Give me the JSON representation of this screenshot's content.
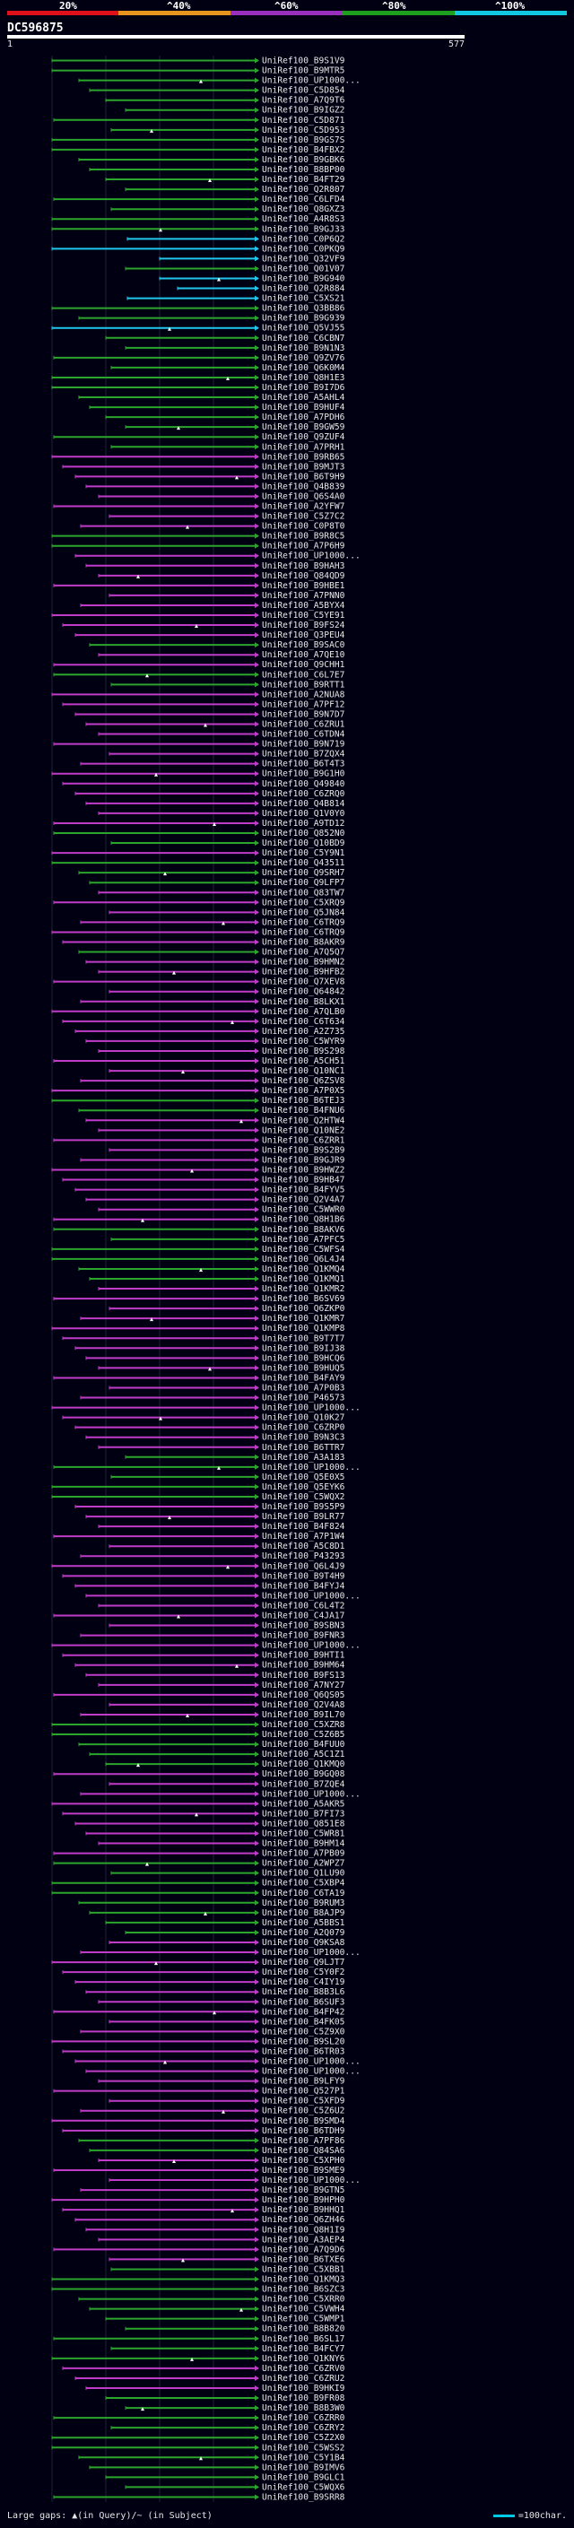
{
  "legend": {
    "segments": [
      {
        "label": "20%",
        "color": "#e0101a"
      },
      {
        "label": "^40%",
        "color": "#e6961e"
      },
      {
        "label": "^60%",
        "color": "#9a2fbe"
      },
      {
        "label": "^80%",
        "color": "#1ea01e"
      },
      {
        "label": "^100%",
        "color": "#12c8e0"
      }
    ]
  },
  "query": {
    "id": "DC596875",
    "start": "1",
    "end": "577"
  },
  "colors": {
    "green": "#2ca52c",
    "magenta": "#c03cc8",
    "cyan": "#21c6ec",
    "background": "#000012",
    "grid": "#1f2236"
  },
  "footer": {
    "gaps_text": "Large gaps: ▲(in Query)/~ (in Subject)",
    "scale_text": "=100char."
  },
  "hits": [
    {
      "id": "UniRef100_B9S1V9",
      "color": "green"
    },
    {
      "id": "UniRef100_B9MTR5",
      "color": "green"
    },
    {
      "id": "UniRef100_UP1000...",
      "color": "green"
    },
    {
      "id": "UniRef100_C5D854",
      "color": "green"
    },
    {
      "id": "UniRef100_A7Q9T6",
      "color": "green"
    },
    {
      "id": "UniRef100_B9IGZ2",
      "color": "green"
    },
    {
      "id": "UniRef100_C5D871",
      "color": "green"
    },
    {
      "id": "UniRef100_C5D953",
      "color": "green"
    },
    {
      "id": "UniRef100_B9GS7S",
      "color": "green"
    },
    {
      "id": "UniRef100_B4FBX2",
      "color": "green"
    },
    {
      "id": "UniRef100_B9GBK6",
      "color": "green"
    },
    {
      "id": "UniRef100_B8BP00",
      "color": "green"
    },
    {
      "id": "UniRef100_B4FT29",
      "color": "green"
    },
    {
      "id": "UniRef100_Q2R807",
      "color": "green"
    },
    {
      "id": "UniRef100_C6LFD4",
      "color": "green"
    },
    {
      "id": "UniRef100_Q8GXZ3",
      "color": "green"
    },
    {
      "id": "UniRef100_A4R8S3",
      "color": "green"
    },
    {
      "id": "UniRef100_B9GJ33",
      "color": "green"
    },
    {
      "id": "UniRef100_C0P6Q2",
      "color": "cyan"
    },
    {
      "id": "UniRef100_C0PKQ9",
      "color": "cyan"
    },
    {
      "id": "UniRef100_Q32VF9",
      "color": "cyan"
    },
    {
      "id": "UniRef100_Q01V07",
      "color": "green"
    },
    {
      "id": "UniRef100_B9G940",
      "color": "cyan"
    },
    {
      "id": "UniRef100_Q2R884",
      "color": "cyan"
    },
    {
      "id": "UniRef100_C5XS21",
      "color": "cyan"
    },
    {
      "id": "UniRef100_Q3BB86",
      "color": "green"
    },
    {
      "id": "UniRef100_B9G939",
      "color": "green"
    },
    {
      "id": "UniRef100_Q5VJ55",
      "color": "cyan"
    },
    {
      "id": "UniRef100_C6CBN7",
      "color": "green"
    },
    {
      "id": "UniRef100_B9N1N3",
      "color": "green"
    },
    {
      "id": "UniRef100_Q9ZV76",
      "color": "green"
    },
    {
      "id": "UniRef100_Q6K0M4",
      "color": "green"
    },
    {
      "id": "UniRef100_Q8H1E3",
      "color": "green"
    },
    {
      "id": "UniRef100_B9I7D6",
      "color": "green"
    },
    {
      "id": "UniRef100_A5AHL4",
      "color": "green"
    },
    {
      "id": "UniRef100_B9HUF4",
      "color": "green"
    },
    {
      "id": "UniRef100_A7PDH6",
      "color": "green"
    },
    {
      "id": "UniRef100_B9GW59",
      "color": "green"
    },
    {
      "id": "UniRef100_Q9ZUF4",
      "color": "green"
    },
    {
      "id": "UniRef100_A7PRH1",
      "color": "green"
    },
    {
      "id": "UniRef100_B9RB65",
      "color": "magenta"
    },
    {
      "id": "UniRef100_B9MJT3",
      "color": "magenta"
    },
    {
      "id": "UniRef100_B6T9H9",
      "color": "magenta"
    },
    {
      "id": "UniRef100_Q4B839",
      "color": "magenta"
    },
    {
      "id": "UniRef100_Q6S4A0",
      "color": "magenta"
    },
    {
      "id": "UniRef100_A2YFW7",
      "color": "magenta"
    },
    {
      "id": "UniRef100_C5Z7C2",
      "color": "magenta"
    },
    {
      "id": "UniRef100_C0P8T0",
      "color": "magenta"
    },
    {
      "id": "UniRef100_B9R8C5",
      "color": "green"
    },
    {
      "id": "UniRef100_A7P6H9",
      "color": "green"
    },
    {
      "id": "UniRef100_UP1000...",
      "color": "magenta"
    },
    {
      "id": "UniRef100_B9HAH3",
      "color": "magenta"
    },
    {
      "id": "UniRef100_Q84QD9",
      "color": "magenta"
    },
    {
      "id": "UniRef100_B9HBE1",
      "color": "magenta"
    },
    {
      "id": "UniRef100_A7PNN0",
      "color": "magenta"
    },
    {
      "id": "UniRef100_A5BYX4",
      "color": "magenta"
    },
    {
      "id": "UniRef100_C5YE91",
      "color": "magenta"
    },
    {
      "id": "UniRef100_B9FS24",
      "color": "magenta"
    },
    {
      "id": "UniRef100_Q3PEU4",
      "color": "magenta"
    },
    {
      "id": "UniRef100_B9SAC0",
      "color": "green"
    },
    {
      "id": "UniRef100_A7QE10",
      "color": "magenta"
    },
    {
      "id": "UniRef100_Q9CHH1",
      "color": "magenta"
    },
    {
      "id": "UniRef100_C6L7E7",
      "color": "green"
    },
    {
      "id": "UniRef100_B9RTT1",
      "color": "green"
    },
    {
      "id": "UniRef100_A2NUA8",
      "color": "magenta"
    },
    {
      "id": "UniRef100_A7PF12",
      "color": "magenta"
    },
    {
      "id": "UniRef100_B9N7D7",
      "color": "magenta"
    },
    {
      "id": "UniRef100_C6ZRU1",
      "color": "magenta"
    },
    {
      "id": "UniRef100_C6TDN4",
      "color": "magenta"
    },
    {
      "id": "UniRef100_B9N719",
      "color": "magenta"
    },
    {
      "id": "UniRef100_B7ZQX4",
      "color": "magenta"
    },
    {
      "id": "UniRef100_B6T4T3",
      "color": "magenta"
    },
    {
      "id": "UniRef100_B9G1H0",
      "color": "magenta"
    },
    {
      "id": "UniRef100_Q49840",
      "color": "magenta"
    },
    {
      "id": "UniRef100_C6ZRQ0",
      "color": "magenta"
    },
    {
      "id": "UniRef100_Q4B814",
      "color": "magenta"
    },
    {
      "id": "UniRef100_Q1V0Y0",
      "color": "magenta"
    },
    {
      "id": "UniRef100_A9TD12",
      "color": "magenta"
    },
    {
      "id": "UniRef100_Q852N0",
      "color": "green"
    },
    {
      "id": "UniRef100_Q10BD9",
      "color": "green"
    },
    {
      "id": "UniRef100_C5Y9N1",
      "color": "magenta"
    },
    {
      "id": "UniRef100_Q43511",
      "color": "green"
    },
    {
      "id": "UniRef100_Q9SRH7",
      "color": "green"
    },
    {
      "id": "UniRef100_Q9LFP7",
      "color": "green"
    },
    {
      "id": "UniRef100_Q83TW7",
      "color": "magenta"
    },
    {
      "id": "UniRef100_C5XRQ9",
      "color": "magenta"
    },
    {
      "id": "UniRef100_Q5JN84",
      "color": "magenta"
    },
    {
      "id": "UniRef100_C6TRQ9",
      "color": "magenta"
    },
    {
      "id": "UniRef100_C6TRQ9",
      "color": "magenta"
    },
    {
      "id": "UniRef100_B8AKR9",
      "color": "magenta"
    },
    {
      "id": "UniRef100_A7Q5Q7",
      "color": "green"
    },
    {
      "id": "UniRef100_B9HMN2",
      "color": "magenta"
    },
    {
      "id": "UniRef100_B9HFB2",
      "color": "magenta"
    },
    {
      "id": "UniRef100_Q7XEV8",
      "color": "magenta"
    },
    {
      "id": "UniRef100_Q64842",
      "color": "magenta"
    },
    {
      "id": "UniRef100_B8LKX1",
      "color": "magenta"
    },
    {
      "id": "UniRef100_A7QLB0",
      "color": "magenta"
    },
    {
      "id": "UniRef100_C6T634",
      "color": "magenta"
    },
    {
      "id": "UniRef100_A2Z735",
      "color": "magenta"
    },
    {
      "id": "UniRef100_C5WYR9",
      "color": "magenta"
    },
    {
      "id": "UniRef100_B9S298",
      "color": "magenta"
    },
    {
      "id": "UniRef100_A5CH51",
      "color": "magenta"
    },
    {
      "id": "UniRef100_Q10NC1",
      "color": "magenta"
    },
    {
      "id": "UniRef100_Q6ZSV8",
      "color": "magenta"
    },
    {
      "id": "UniRef100_A7P0X5",
      "color": "magenta"
    },
    {
      "id": "UniRef100_B6TEJ3",
      "color": "green"
    },
    {
      "id": "UniRef100_B4FNU6",
      "color": "green"
    },
    {
      "id": "UniRef100_Q2HTW4",
      "color": "magenta"
    },
    {
      "id": "UniRef100_Q10NE2",
      "color": "magenta"
    },
    {
      "id": "UniRef100_C6ZRR1",
      "color": "magenta"
    },
    {
      "id": "UniRef100_B9S2B9",
      "color": "magenta"
    },
    {
      "id": "UniRef100_B9GJR9",
      "color": "magenta"
    },
    {
      "id": "UniRef100_B9HWZ2",
      "color": "magenta"
    },
    {
      "id": "UniRef100_B9HB47",
      "color": "magenta"
    },
    {
      "id": "UniRef100_B4FYV5",
      "color": "magenta"
    },
    {
      "id": "UniRef100_Q2V4A7",
      "color": "magenta"
    },
    {
      "id": "UniRef100_C5WWR0",
      "color": "magenta"
    },
    {
      "id": "UniRef100_Q8H1B6",
      "color": "magenta"
    },
    {
      "id": "UniRef100_B8AKV6",
      "color": "green"
    },
    {
      "id": "UniRef100_A7PFC5",
      "color": "green"
    },
    {
      "id": "UniRef100_C5WFS4",
      "color": "green"
    },
    {
      "id": "UniRef100_Q6L4J4",
      "color": "green"
    },
    {
      "id": "UniRef100_Q1KMQ4",
      "color": "green"
    },
    {
      "id": "UniRef100_Q1KMQ1",
      "color": "green"
    },
    {
      "id": "UniRef100_Q1KMR2",
      "color": "magenta"
    },
    {
      "id": "UniRef100_B6SV69",
      "color": "magenta"
    },
    {
      "id": "UniRef100_Q6ZKP0",
      "color": "magenta"
    },
    {
      "id": "UniRef100_Q1KMR7",
      "color": "magenta"
    },
    {
      "id": "UniRef100_Q1KMP8",
      "color": "magenta"
    },
    {
      "id": "UniRef100_B9T7T7",
      "color": "magenta"
    },
    {
      "id": "UniRef100_B9IJ38",
      "color": "magenta"
    },
    {
      "id": "UniRef100_B9HCQ6",
      "color": "magenta"
    },
    {
      "id": "UniRef100_B9HUQ5",
      "color": "magenta"
    },
    {
      "id": "UniRef100_B4FAY9",
      "color": "magenta"
    },
    {
      "id": "UniRef100_A7P0B3",
      "color": "magenta"
    },
    {
      "id": "UniRef100_P46573",
      "color": "magenta"
    },
    {
      "id": "UniRef100_UP1000...",
      "color": "magenta"
    },
    {
      "id": "UniRef100_Q10K27",
      "color": "magenta"
    },
    {
      "id": "UniRef100_C6ZRP0",
      "color": "magenta"
    },
    {
      "id": "UniRef100_B9N3C3",
      "color": "magenta"
    },
    {
      "id": "UniRef100_B6TTR7",
      "color": "magenta"
    },
    {
      "id": "UniRef100_A3A183",
      "color": "green"
    },
    {
      "id": "UniRef100_UP1000...",
      "color": "green"
    },
    {
      "id": "UniRef100_Q5E0X5",
      "color": "green"
    },
    {
      "id": "UniRef100_Q5EYK6",
      "color": "green"
    },
    {
      "id": "UniRef100_C5WQX2",
      "color": "green"
    },
    {
      "id": "UniRef100_B9S5P9",
      "color": "magenta"
    },
    {
      "id": "UniRef100_B9LR77",
      "color": "magenta"
    },
    {
      "id": "UniRef100_B4F824",
      "color": "magenta"
    },
    {
      "id": "UniRef100_A7P1W4",
      "color": "magenta"
    },
    {
      "id": "UniRef100_A5C8D1",
      "color": "magenta"
    },
    {
      "id": "UniRef100_P43293",
      "color": "magenta"
    },
    {
      "id": "UniRef100_Q6L4J9",
      "color": "magenta"
    },
    {
      "id": "UniRef100_B9T4H9",
      "color": "magenta"
    },
    {
      "id": "UniRef100_B4FYJ4",
      "color": "magenta"
    },
    {
      "id": "UniRef100_UP1000...",
      "color": "magenta"
    },
    {
      "id": "UniRef100_C6L4T2",
      "color": "magenta"
    },
    {
      "id": "UniRef100_C4JA17",
      "color": "magenta"
    },
    {
      "id": "UniRef100_B9SBN3",
      "color": "magenta"
    },
    {
      "id": "UniRef100_B9FNR3",
      "color": "magenta"
    },
    {
      "id": "UniRef100_UP1000...",
      "color": "magenta"
    },
    {
      "id": "UniRef100_B9HTI1",
      "color": "magenta"
    },
    {
      "id": "UniRef100_B9HM64",
      "color": "magenta"
    },
    {
      "id": "UniRef100_B9FS13",
      "color": "magenta"
    },
    {
      "id": "UniRef100_A7NY27",
      "color": "magenta"
    },
    {
      "id": "UniRef100_Q6QS05",
      "color": "magenta"
    },
    {
      "id": "UniRef100_Q2V4A8",
      "color": "magenta"
    },
    {
      "id": "UniRef100_B9IL70",
      "color": "magenta"
    },
    {
      "id": "UniRef100_C5XZR8",
      "color": "green"
    },
    {
      "id": "UniRef100_C5Z6B5",
      "color": "green"
    },
    {
      "id": "UniRef100_B4FUU0",
      "color": "green"
    },
    {
      "id": "UniRef100_A5C1Z1",
      "color": "green"
    },
    {
      "id": "UniRef100_Q1KMQ0",
      "color": "green"
    },
    {
      "id": "UniRef100_B9GQ08",
      "color": "magenta"
    },
    {
      "id": "UniRef100_B7ZQE4",
      "color": "magenta"
    },
    {
      "id": "UniRef100_UP1000...",
      "color": "magenta"
    },
    {
      "id": "UniRef100_A5AKR5",
      "color": "magenta"
    },
    {
      "id": "UniRef100_B7FI73",
      "color": "magenta"
    },
    {
      "id": "UniRef100_Q851E8",
      "color": "magenta"
    },
    {
      "id": "UniRef100_C5WR81",
      "color": "magenta"
    },
    {
      "id": "UniRef100_B9HM14",
      "color": "magenta"
    },
    {
      "id": "UniRef100_A7PB09",
      "color": "magenta"
    },
    {
      "id": "UniRef100_A2WPZ7",
      "color": "green"
    },
    {
      "id": "UniRef100_Q1LU90",
      "color": "green"
    },
    {
      "id": "UniRef100_C5XBP4",
      "color": "green"
    },
    {
      "id": "UniRef100_C6TA19",
      "color": "green"
    },
    {
      "id": "UniRef100_B9RUM3",
      "color": "green"
    },
    {
      "id": "UniRef100_B8AJP9",
      "color": "green"
    },
    {
      "id": "UniRef100_A5BBS1",
      "color": "green"
    },
    {
      "id": "UniRef100_A2Q079",
      "color": "green"
    },
    {
      "id": "UniRef100_Q9KSA8",
      "color": "magenta"
    },
    {
      "id": "UniRef100_UP1000...",
      "color": "magenta"
    },
    {
      "id": "UniRef100_Q9LJT7",
      "color": "magenta"
    },
    {
      "id": "UniRef100_C5Y0F2",
      "color": "magenta"
    },
    {
      "id": "UniRef100_C4IY19",
      "color": "magenta"
    },
    {
      "id": "UniRef100_B8B3L6",
      "color": "magenta"
    },
    {
      "id": "UniRef100_B6SUF3",
      "color": "magenta"
    },
    {
      "id": "UniRef100_B4FP42",
      "color": "magenta"
    },
    {
      "id": "UniRef100_B4FK05",
      "color": "magenta"
    },
    {
      "id": "UniRef100_C5Z9X0",
      "color": "magenta"
    },
    {
      "id": "UniRef100_B9SL20",
      "color": "magenta"
    },
    {
      "id": "UniRef100_B6TR03",
      "color": "magenta"
    },
    {
      "id": "UniRef100_UP1000...",
      "color": "magenta"
    },
    {
      "id": "UniRef100_UP1000...",
      "color": "magenta"
    },
    {
      "id": "UniRef100_B9LFY9",
      "color": "magenta"
    },
    {
      "id": "UniRef100_Q527P1",
      "color": "magenta"
    },
    {
      "id": "UniRef100_C5XFD9",
      "color": "magenta"
    },
    {
      "id": "UniRef100_C5Z6U2",
      "color": "magenta"
    },
    {
      "id": "UniRef100_B9SMD4",
      "color": "magenta"
    },
    {
      "id": "UniRef100_B6TDH9",
      "color": "magenta"
    },
    {
      "id": "UniRef100_A7PF86",
      "color": "green"
    },
    {
      "id": "UniRef100_Q84SA6",
      "color": "green"
    },
    {
      "id": "UniRef100_C5XPH0",
      "color": "magenta"
    },
    {
      "id": "UniRef100_B9SME9",
      "color": "magenta"
    },
    {
      "id": "UniRef100_UP1000...",
      "color": "magenta"
    },
    {
      "id": "UniRef100_B9GTN5",
      "color": "magenta"
    },
    {
      "id": "UniRef100_B9HPH0",
      "color": "magenta"
    },
    {
      "id": "UniRef100_B9HHQ1",
      "color": "magenta"
    },
    {
      "id": "UniRef100_Q6ZH46",
      "color": "magenta"
    },
    {
      "id": "UniRef100_Q8H1I9",
      "color": "magenta"
    },
    {
      "id": "UniRef100_A3AEP4",
      "color": "magenta"
    },
    {
      "id": "UniRef100_A7Q9D6",
      "color": "magenta"
    },
    {
      "id": "UniRef100_B6TXE6",
      "color": "magenta"
    },
    {
      "id": "UniRef100_C5XBB1",
      "color": "green"
    },
    {
      "id": "UniRef100_Q1KMQ3",
      "color": "green"
    },
    {
      "id": "UniRef100_B6SZC3",
      "color": "green"
    },
    {
      "id": "UniRef100_C5XRR0",
      "color": "green"
    },
    {
      "id": "UniRef100_C5VWH4",
      "color": "green"
    },
    {
      "id": "UniRef100_C5WMP1",
      "color": "green"
    },
    {
      "id": "UniRef100_B8B820",
      "color": "green"
    },
    {
      "id": "UniRef100_B6SL17",
      "color": "green"
    },
    {
      "id": "UniRef100_B4FCY7",
      "color": "green"
    },
    {
      "id": "UniRef100_Q1KNY6",
      "color": "green"
    },
    {
      "id": "UniRef100_C6ZRV0",
      "color": "magenta"
    },
    {
      "id": "UniRef100_C6ZRU2",
      "color": "magenta"
    },
    {
      "id": "UniRef100_B9HKI9",
      "color": "magenta"
    },
    {
      "id": "UniRef100_B9FR08",
      "color": "green"
    },
    {
      "id": "UniRef100_B8B3W0",
      "color": "green"
    },
    {
      "id": "UniRef100_C6ZRR0",
      "color": "green"
    },
    {
      "id": "UniRef100_C6ZRY2",
      "color": "green"
    },
    {
      "id": "UniRef100_C5Z2X0",
      "color": "green"
    },
    {
      "id": "UniRef100_C5WSS2",
      "color": "green"
    },
    {
      "id": "UniRef100_C5Y1B4",
      "color": "green"
    },
    {
      "id": "UniRef100_B9IMV6",
      "color": "green"
    },
    {
      "id": "UniRef100_B9GLC1",
      "color": "green"
    },
    {
      "id": "UniRef100_C5WQX6",
      "color": "green"
    },
    {
      "id": "UniRef100_B9SRR8",
      "color": "green"
    }
  ]
}
